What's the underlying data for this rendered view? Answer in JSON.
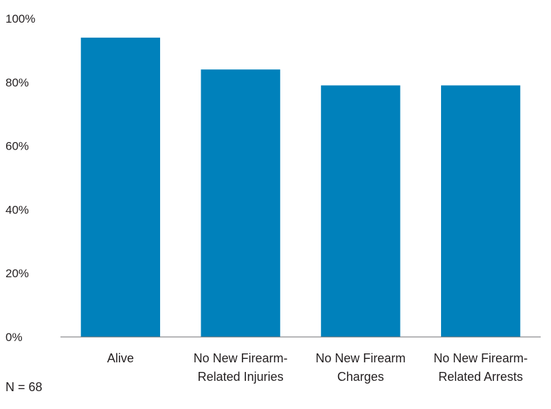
{
  "chart_data": {
    "type": "bar",
    "title": "",
    "xlabel": "",
    "ylabel": "",
    "categories": [
      [
        "Alive"
      ],
      [
        "No New Firearm-",
        "Related Injuries"
      ],
      [
        "No New Firearm",
        "Charges"
      ],
      [
        "No New Firearm-",
        "Related Arrests"
      ]
    ],
    "values": [
      94,
      84,
      79,
      79
    ],
    "ylim": [
      0,
      100
    ],
    "yticks": [
      0,
      20,
      40,
      60,
      80,
      100
    ],
    "ytick_labels": [
      "0%",
      "20%",
      "40%",
      "60%",
      "80%",
      "100%"
    ],
    "bar_color": "#0081bb",
    "grid": false,
    "legend": "none"
  },
  "note": "N = 68"
}
